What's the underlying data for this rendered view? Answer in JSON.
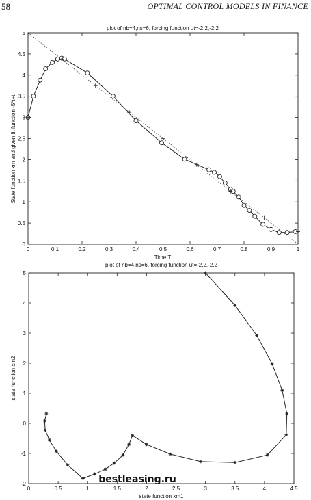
{
  "page": {
    "number": "58",
    "running_head": "OPTIMAL CONTROL MODELS IN FINANCE",
    "watermark": "bestleasing.ru"
  },
  "colors": {
    "line": "#222222",
    "dotted": "#444444",
    "watermark": "#7ddc1f"
  },
  "chart_data": [
    {
      "type": "line",
      "title": "plot of nb=4,ns=6, forcing function ut=-2,2,-2,2",
      "xlabel": "Time T",
      "ylabel": "State function xm and given fit function -5*t+t",
      "xlim": [
        0,
        1
      ],
      "ylim": [
        0,
        5
      ],
      "xticks": [
        "0",
        "0.1",
        "0.2",
        "0.3",
        "0.4",
        "0.5",
        "0.6",
        "0.7",
        "0.8",
        "0.9",
        "1"
      ],
      "yticks": [
        "0",
        "0.5",
        "1",
        "1.5",
        "2",
        "2.5",
        "3",
        "3.5",
        "4",
        "4.5",
        "5"
      ],
      "grid": false,
      "series": [
        {
          "style": "solid line with circle markers",
          "x": [
            0,
            0.02,
            0.045,
            0.065,
            0.09,
            0.11,
            0.125,
            0.135,
            0.22,
            0.315,
            0.4,
            0.495,
            0.58,
            0.67,
            0.69,
            0.71,
            0.73,
            0.75,
            0.76,
            0.78,
            0.8,
            0.82,
            0.84,
            0.87,
            0.9,
            0.93,
            0.96,
            0.99
          ],
          "y": [
            3.0,
            3.5,
            3.88,
            4.15,
            4.3,
            4.38,
            4.4,
            4.38,
            4.05,
            3.5,
            2.92,
            2.4,
            2.01,
            1.76,
            1.7,
            1.6,
            1.45,
            1.3,
            1.25,
            1.12,
            0.92,
            0.8,
            0.66,
            0.47,
            0.35,
            0.28,
            0.28,
            0.3
          ]
        },
        {
          "style": "dotted line",
          "x": [
            0,
            1
          ],
          "y": [
            5.0,
            0.0
          ]
        },
        {
          "style": "plus markers",
          "x": [
            0,
            0.125,
            0.25,
            0.375,
            0.5,
            0.625,
            0.75,
            0.875,
            1.0
          ],
          "y": [
            3.0,
            4.38,
            3.75,
            3.12,
            2.5,
            1.88,
            1.25,
            0.62,
            0.3
          ]
        }
      ]
    },
    {
      "type": "line",
      "title": "plot of nb=4,ns=6, forcing function ut=-2,2,-2,2",
      "xlabel": "state function xm1",
      "ylabel": "state function xm2",
      "xlim": [
        0,
        4.5
      ],
      "ylim": [
        -2,
        5
      ],
      "xticks": [
        "0",
        "0.5",
        "1",
        "1.5",
        "2",
        "2.5",
        "3",
        "3.5",
        "4",
        "4.5"
      ],
      "yticks": [
        "-2",
        "-1",
        "0",
        "1",
        "2",
        "3",
        "4",
        "5"
      ],
      "grid": false,
      "series": [
        {
          "style": "solid line with star markers",
          "x": [
            3.0,
            3.5,
            3.87,
            4.13,
            4.3,
            4.38,
            4.37,
            4.05,
            3.5,
            2.92,
            2.4,
            2.0,
            1.76,
            1.7,
            1.6,
            1.45,
            1.3,
            1.12,
            0.92,
            0.66,
            0.47,
            0.35,
            0.28,
            0.27,
            0.3
          ],
          "y": [
            5.0,
            3.92,
            2.92,
            1.98,
            1.1,
            0.32,
            -0.38,
            -1.05,
            -1.3,
            -1.27,
            -1.02,
            -0.7,
            -0.4,
            -0.7,
            -1.05,
            -1.32,
            -1.52,
            -1.68,
            -1.83,
            -1.38,
            -0.93,
            -0.55,
            -0.22,
            0.08,
            0.32
          ]
        }
      ]
    }
  ]
}
